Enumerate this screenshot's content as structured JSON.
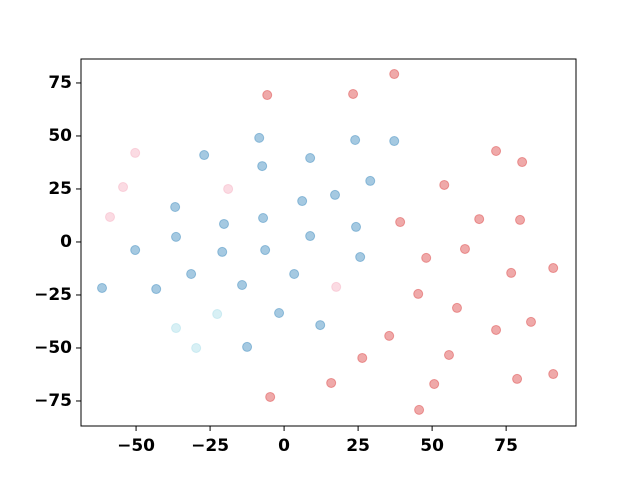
{
  "chart_data": {
    "type": "scatter",
    "series": [
      {
        "color": "#d62728",
        "x": [
          37.2,
          -5.7,
          23.3,
          71.6,
          80.4,
          54.1,
          39.2,
          65.9,
          79.7,
          61.1,
          48.0,
          90.9,
          76.7,
          45.3,
          58.4,
          83.4,
          71.6,
          35.5,
          55.7,
          26.4,
          90.9,
          78.7,
          15.9,
          50.7,
          -4.7,
          45.6
        ],
        "y": [
          79.2,
          69.3,
          69.8,
          42.9,
          37.7,
          26.9,
          9.4,
          10.8,
          10.4,
          -3.3,
          -7.5,
          -12.3,
          -14.6,
          -24.5,
          -31.1,
          -37.7,
          -41.5,
          -44.3,
          -53.3,
          -54.7,
          -62.3,
          -64.6,
          -66.5,
          -67.0,
          -73.1,
          -79.2
        ]
      },
      {
        "color": "#1f77b4",
        "x": [
          -8.4,
          24.0,
          37.2,
          -27.0,
          8.8,
          -7.4,
          29.1,
          17.2,
          6.1,
          -36.8,
          -7.1,
          -20.3,
          24.3,
          8.8,
          -36.5,
          -50.3,
          -6.4,
          -20.9,
          25.7,
          -31.4,
          3.4,
          -14.2,
          -61.5,
          -43.2,
          -1.7,
          12.2,
          -12.5
        ],
        "y": [
          49.1,
          48.1,
          47.6,
          41.0,
          39.6,
          35.8,
          28.8,
          22.2,
          19.3,
          16.5,
          11.3,
          8.5,
          7.1,
          2.8,
          2.4,
          -3.8,
          -3.8,
          -4.7,
          -7.1,
          -15.1,
          -15.1,
          -20.3,
          -21.7,
          -22.2,
          -33.5,
          -39.2,
          -49.5
        ]
      },
      {
        "color": "#f4a6b8",
        "x": [
          -50.3,
          -54.4,
          -18.9,
          -58.8,
          17.6
        ],
        "y": [
          42.0,
          25.9,
          25.0,
          11.8,
          -21.2
        ]
      },
      {
        "color": "#9edae5",
        "x": [
          -36.5,
          -22.6,
          -29.7
        ],
        "y": [
          -40.6,
          -34.0,
          -50.0
        ]
      }
    ],
    "xlim": [
      -68.6,
      98.6
    ],
    "ylim": [
      -86.8,
      86.3
    ],
    "xticks": [
      {
        "value": -50,
        "label": "−50"
      },
      {
        "value": -25,
        "label": "−25"
      },
      0,
      25,
      50,
      75
    ],
    "yticks": [
      {
        "value": -75,
        "label": "−75"
      },
      {
        "value": -50,
        "label": "−50"
      },
      {
        "value": -25,
        "label": "−25"
      },
      0,
      25,
      50,
      75
    ]
  }
}
